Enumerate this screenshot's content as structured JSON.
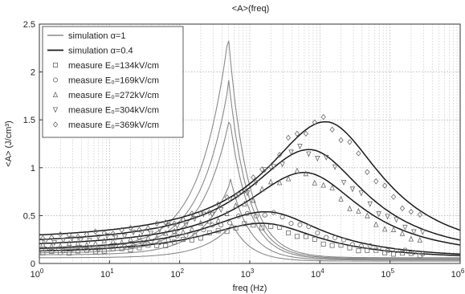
{
  "chart_data": {
    "type": "line",
    "title": "<A>(freq)",
    "xlabel": "freq (Hz)",
    "ylabel": "<A> (J/cm³)",
    "xscale": "log",
    "xlim": [
      1,
      1000000
    ],
    "ylim": [
      0,
      2.5
    ],
    "x_tick_exponents": [
      "0",
      "1",
      "2",
      "3",
      "4",
      "5",
      "6"
    ],
    "x_tick_base": "10",
    "y_ticks": [
      "0",
      "0.5",
      "1",
      "1.5",
      "2",
      "2.5"
    ],
    "grid": "dotted",
    "legend_position": "top-left",
    "colors": {
      "simulation_1": "#8a8a8a",
      "simulation_04": "#1a1a1a",
      "measure": "#6a6a6a"
    },
    "legend": [
      {
        "text": "simulation α=1",
        "style": "gray-line"
      },
      {
        "text": "simulation α=0.4",
        "style": "black-line"
      },
      {
        "text": "measure E₀=134kV/cm",
        "style": "square"
      },
      {
        "text": "measure E₀=169kV/cm",
        "style": "circle"
      },
      {
        "text": "measure E₀=272kV/cm",
        "style": "triangle-up"
      },
      {
        "text": "measure E₀=304kV/cm",
        "style": "triangle-down"
      },
      {
        "text": "measure E₀=369kV/cm",
        "style": "diamond"
      }
    ],
    "series": [
      {
        "group": "simulation α=1",
        "peak_x": 550,
        "peak_y": 0.4,
        "base": 0.06
      },
      {
        "group": "simulation α=1",
        "peak_x": 530,
        "peak_y": 0.85,
        "base": 0.09
      },
      {
        "group": "simulation α=1",
        "peak_x": 510,
        "peak_y": 1.5,
        "base": 0.11
      },
      {
        "group": "simulation α=1",
        "peak_x": 500,
        "peak_y": 1.87,
        "base": 0.13
      },
      {
        "group": "simulation α=1",
        "peak_x": 490,
        "peak_y": 2.35,
        "base": 0.15
      },
      {
        "group": "simulation α=0.4",
        "peak_x": 1500,
        "peak_y": 0.42,
        "base": 0.1
      },
      {
        "group": "simulation α=0.4",
        "peak_x": 1700,
        "peak_y": 0.54,
        "base": 0.12
      },
      {
        "group": "simulation α=0.4",
        "peak_x": 6000,
        "peak_y": 0.95,
        "base": 0.15
      },
      {
        "group": "simulation α=0.4",
        "peak_x": 7000,
        "peak_y": 1.19,
        "base": 0.18
      },
      {
        "group": "simulation α=0.4",
        "peak_x": 12000,
        "peak_y": 1.48,
        "base": 0.22
      }
    ],
    "measurements": [
      {
        "name": "measure E₀=134kV/cm",
        "marker": "square",
        "peak_x": 1200,
        "peak_y": 0.4,
        "base": 0.08
      },
      {
        "name": "measure E₀=169kV/cm",
        "marker": "circle",
        "peak_x": 1500,
        "peak_y": 0.52,
        "base": 0.1
      },
      {
        "name": "measure E₀=272kV/cm",
        "marker": "triangle-up",
        "peak_x": 5000,
        "peak_y": 0.93,
        "base": 0.13
      },
      {
        "name": "measure E₀=304kV/cm",
        "marker": "triangle-down",
        "peak_x": 6000,
        "peak_y": 1.18,
        "base": 0.16
      },
      {
        "name": "measure E₀=369kV/cm",
        "marker": "diamond",
        "peak_x": 10000,
        "peak_y": 1.47,
        "base": 0.2
      }
    ]
  }
}
